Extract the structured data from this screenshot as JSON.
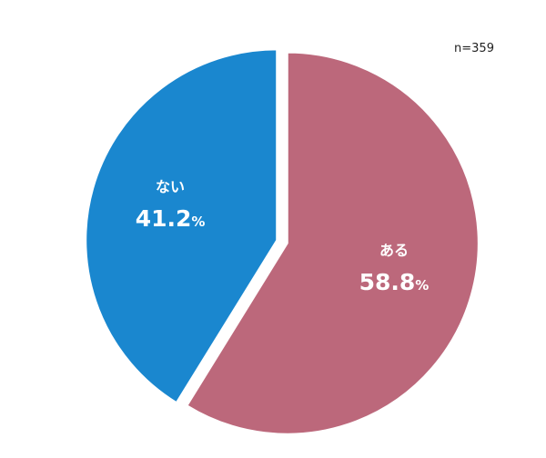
{
  "chart_data": {
    "type": "pie",
    "note": "n=359",
    "start": "top",
    "direction": "clockwise",
    "slices": [
      {
        "label": "ある",
        "value": 58.8,
        "unit": "%",
        "color": "#BC687B"
      },
      {
        "label": "ない",
        "value": 41.2,
        "unit": "%",
        "color": "#1A87CF"
      }
    ]
  }
}
